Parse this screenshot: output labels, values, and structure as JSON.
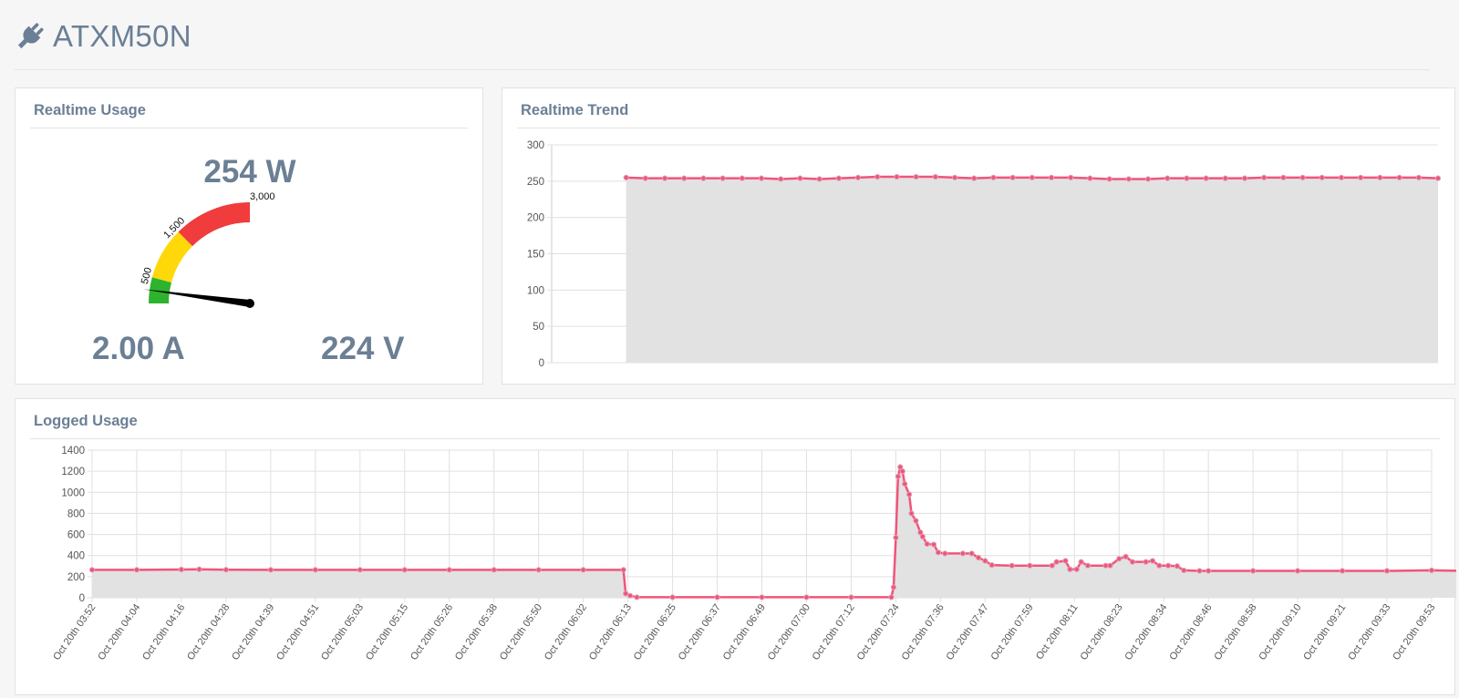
{
  "header": {
    "title": "ATXM50N",
    "icon": "plug-icon"
  },
  "realtime_usage": {
    "title": "Realtime Usage",
    "power": "254 W",
    "current": "2.00 A",
    "voltage": "224 V",
    "gauge": {
      "value": 254,
      "min": 0,
      "max": 3000,
      "bands": [
        {
          "from": 0,
          "to": 500,
          "color": "#2db32d"
        },
        {
          "from": 500,
          "to": 1500,
          "color": "#ffd80a"
        },
        {
          "from": 1500,
          "to": 3000,
          "color": "#f03c3c"
        }
      ],
      "labels": [
        "500",
        "1,500",
        "3,000"
      ]
    }
  },
  "realtime_trend": {
    "title": "Realtime Trend",
    "chart_data": {
      "type": "area",
      "ylim": [
        0,
        300
      ],
      "yticks": [
        "0",
        "50",
        "100",
        "150",
        "200",
        "250",
        "300"
      ],
      "x_start_fraction": 0.084,
      "values": [
        255,
        254,
        254,
        254,
        254,
        254,
        254,
        254,
        253,
        254,
        253,
        254,
        255,
        256,
        256,
        256,
        256,
        255,
        254,
        255,
        255,
        255,
        255,
        255,
        254,
        253,
        253,
        253,
        254,
        254,
        254,
        254,
        254,
        255,
        255,
        255,
        255,
        255,
        255,
        255,
        255,
        255,
        254
      ],
      "color": "#f0547a"
    }
  },
  "logged_usage": {
    "title": "Logged Usage",
    "chart_data": {
      "type": "area",
      "ylim": [
        0,
        1400
      ],
      "yticks": [
        "0",
        "200",
        "400",
        "600",
        "800",
        "1000",
        "1200",
        "1400"
      ],
      "xticks": [
        "Oct 20th 03:52",
        "Oct 20th 04:04",
        "Oct 20th 04:16",
        "Oct 20th 04:28",
        "Oct 20th 04:39",
        "Oct 20th 04:51",
        "Oct 20th 05:03",
        "Oct 20th 05:15",
        "Oct 20th 05:26",
        "Oct 20th 05:38",
        "Oct 20th 05:50",
        "Oct 20th 06:02",
        "Oct 20th 06:13",
        "Oct 20th 06:25",
        "Oct 20th 06:37",
        "Oct 20th 06:49",
        "Oct 20th 07:00",
        "Oct 20th 07:12",
        "Oct 20th 07:24",
        "Oct 20th 07:36",
        "Oct 20th 07:47",
        "Oct 20th 07:59",
        "Oct 20th 08:11",
        "Oct 20th 08:23",
        "Oct 20th 08:34",
        "Oct 20th 08:46",
        "Oct 20th 08:58",
        "Oct 20th 09:10",
        "Oct 20th 09:21",
        "Oct 20th 09:33",
        "Oct 20th 09:53"
      ],
      "points": [
        [
          0,
          265
        ],
        [
          1,
          265
        ],
        [
          2,
          268
        ],
        [
          2.4,
          270
        ],
        [
          3,
          266
        ],
        [
          4,
          265
        ],
        [
          5,
          265
        ],
        [
          6,
          265
        ],
        [
          7,
          265
        ],
        [
          8,
          265
        ],
        [
          9,
          265
        ],
        [
          10,
          265
        ],
        [
          11,
          265
        ],
        [
          11.9,
          265
        ],
        [
          11.95,
          40
        ],
        [
          12.05,
          20
        ],
        [
          12.2,
          5
        ],
        [
          13,
          5
        ],
        [
          14,
          5
        ],
        [
          15,
          5
        ],
        [
          16,
          5
        ],
        [
          17,
          5
        ],
        [
          17.9,
          5
        ],
        [
          17.95,
          100
        ],
        [
          18,
          570
        ],
        [
          18.05,
          1150
        ],
        [
          18.1,
          1240
        ],
        [
          18.15,
          1200
        ],
        [
          18.2,
          1080
        ],
        [
          18.3,
          980
        ],
        [
          18.35,
          800
        ],
        [
          18.45,
          730
        ],
        [
          18.55,
          620
        ],
        [
          18.6,
          580
        ],
        [
          18.7,
          510
        ],
        [
          18.85,
          505
        ],
        [
          18.95,
          430
        ],
        [
          19.1,
          420
        ],
        [
          19.5,
          420
        ],
        [
          19.7,
          420
        ],
        [
          19.85,
          380
        ],
        [
          20,
          350
        ],
        [
          20.15,
          310
        ],
        [
          20.6,
          305
        ],
        [
          21,
          305
        ],
        [
          21.5,
          305
        ],
        [
          21.6,
          340
        ],
        [
          21.8,
          350
        ],
        [
          21.9,
          270
        ],
        [
          22.05,
          270
        ],
        [
          22.15,
          340
        ],
        [
          22.3,
          305
        ],
        [
          22.7,
          305
        ],
        [
          22.8,
          305
        ],
        [
          23,
          370
        ],
        [
          23.15,
          390
        ],
        [
          23.3,
          340
        ],
        [
          23.6,
          340
        ],
        [
          23.75,
          350
        ],
        [
          23.9,
          305
        ],
        [
          24.1,
          305
        ],
        [
          24.3,
          300
        ],
        [
          24.45,
          260
        ],
        [
          24.8,
          255
        ],
        [
          25,
          255
        ],
        [
          26,
          255
        ],
        [
          27,
          255
        ],
        [
          28,
          255
        ],
        [
          29,
          255
        ],
        [
          30,
          260
        ],
        [
          30.8,
          255
        ]
      ],
      "color": "#f0547a"
    }
  }
}
